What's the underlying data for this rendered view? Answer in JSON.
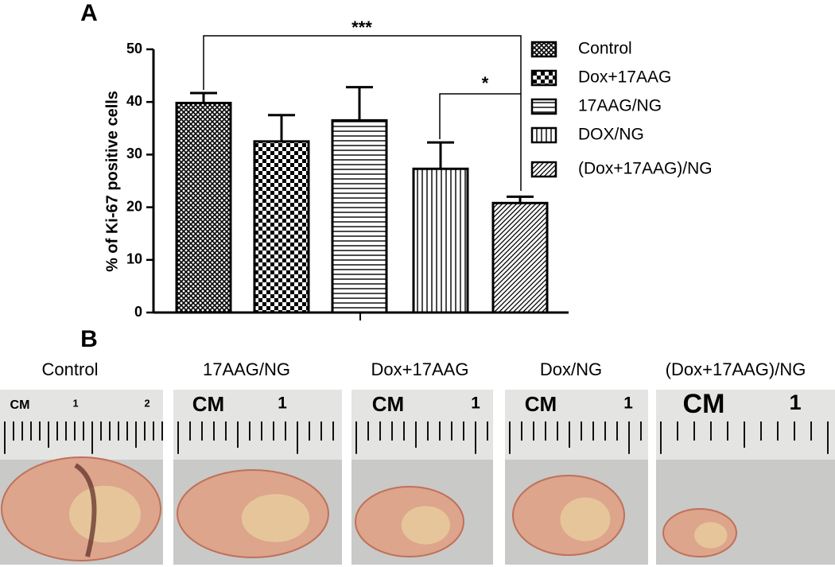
{
  "chart_data": {
    "type": "bar",
    "panel_label": "A",
    "ylabel": "% of Ki-67 positive cells",
    "categories": [
      "Control",
      "Dox+17AAG",
      "17AAG/NG",
      "DOX/NG",
      "(Dox+17AAG)/NG"
    ],
    "values": [
      39.8,
      32.5,
      36.5,
      27.3,
      20.8
    ],
    "errors": [
      1.9,
      5.0,
      6.3,
      5.0,
      1.2
    ],
    "patterns": [
      "crosshatch",
      "checker",
      "horizontal",
      "vertical",
      "diagonal"
    ],
    "ylim": [
      0,
      50
    ],
    "yticks": [
      0,
      10,
      20,
      30,
      40,
      50
    ],
    "annotations": [
      "***",
      "*"
    ]
  },
  "panel_b": {
    "panel_label": "B",
    "photos": [
      {
        "label": "Control",
        "ruler": [
          "CM",
          "1",
          "2"
        ]
      },
      {
        "label": "17AAG/NG",
        "ruler": [
          "CM",
          "1"
        ]
      },
      {
        "label": "Dox+17AAG",
        "ruler": [
          "CM",
          "1"
        ]
      },
      {
        "label": "Dox/NG",
        "ruler": [
          "CM",
          "1"
        ]
      },
      {
        "label": "(Dox+17AAG)/NG",
        "ruler": [
          "CM",
          "1"
        ]
      }
    ]
  }
}
